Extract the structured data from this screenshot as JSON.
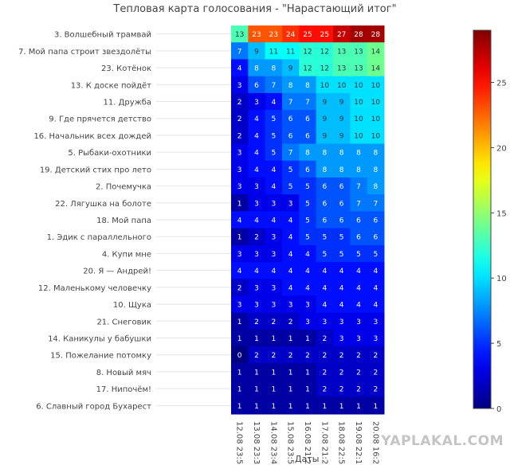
{
  "watermark": "YAPLAKAL.COM",
  "chart_data": {
    "type": "heatmap",
    "title": "Тепловая карта голосования - \"Нарастающий итог\"",
    "xlabel": "Даты",
    "ylabel": "",
    "x": [
      "12.08 23:5",
      "13.08 23:3",
      "14.08 23:4",
      "15.08 23:5",
      "16.08 21:2",
      "17.08 21:2",
      "18.08 22:5",
      "19.08 22:1",
      "20.08 16:2"
    ],
    "y": [
      "3. Волшебный трамвай",
      "7. Мой папа строит звездолёты",
      "23. Котёнок",
      "13. К доске пойдёт",
      "11. Дружба",
      "9. Где прячется детство",
      "16. Начальник всех дождей",
      "5. Рыбаки-охотники",
      "19. Детский стих про лето",
      "2. Почемучка",
      "22. Лягушка на болоте",
      "18. Мой папа",
      "1. Эдик с параллельного",
      "4. Купи мне",
      "20. Я — Андрей!",
      "12. Маленькому человечку",
      "10. Щука",
      "21. Снеговик",
      "14. Каникулы у бабушки",
      "15. Пожелание потомку",
      "8. Новый мяч",
      "17. Нипочём!",
      "6. Славный город Бухарест"
    ],
    "z": [
      [
        13,
        23,
        23,
        24,
        25,
        25,
        27,
        28,
        28
      ],
      [
        7,
        9,
        11,
        11,
        12,
        12,
        13,
        13,
        14
      ],
      [
        4,
        8,
        8,
        9,
        12,
        12,
        13,
        13,
        14
      ],
      [
        3,
        6,
        7,
        8,
        8,
        10,
        10,
        10,
        10
      ],
      [
        2,
        3,
        4,
        7,
        7,
        9,
        9,
        10,
        10
      ],
      [
        2,
        4,
        5,
        6,
        6,
        9,
        9,
        10,
        10
      ],
      [
        2,
        4,
        5,
        6,
        6,
        9,
        9,
        10,
        10
      ],
      [
        3,
        4,
        5,
        7,
        8,
        8,
        8,
        8,
        8
      ],
      [
        3,
        4,
        4,
        5,
        6,
        8,
        8,
        8,
        8
      ],
      [
        3,
        3,
        4,
        5,
        5,
        6,
        6,
        7,
        8
      ],
      [
        1,
        3,
        3,
        3,
        5,
        6,
        6,
        7,
        7
      ],
      [
        4,
        4,
        4,
        4,
        5,
        6,
        6,
        6,
        6
      ],
      [
        1,
        2,
        3,
        4,
        5,
        5,
        5,
        6,
        6
      ],
      [
        3,
        3,
        3,
        4,
        4,
        5,
        5,
        5,
        5
      ],
      [
        4,
        4,
        4,
        4,
        4,
        4,
        4,
        4,
        4
      ],
      [
        2,
        3,
        3,
        4,
        4,
        4,
        4,
        4,
        4
      ],
      [
        3,
        3,
        3,
        3,
        3,
        4,
        4,
        4,
        4
      ],
      [
        1,
        2,
        2,
        2,
        3,
        3,
        3,
        3,
        3
      ],
      [
        1,
        1,
        1,
        1,
        1,
        2,
        3,
        3,
        3
      ],
      [
        0,
        2,
        2,
        2,
        2,
        2,
        2,
        2,
        2
      ],
      [
        1,
        1,
        1,
        1,
        1,
        2,
        2,
        2,
        2
      ],
      [
        1,
        1,
        1,
        1,
        1,
        2,
        2,
        2,
        2
      ],
      [
        1,
        1,
        1,
        1,
        1,
        1,
        1,
        1,
        1
      ]
    ],
    "zlim": [
      0,
      29
    ],
    "colorscale": "jet",
    "colorbar_ticks": [
      0,
      5,
      10,
      15,
      20,
      25
    ],
    "grid": true,
    "colors": {
      "cell_text_dark": "#333333",
      "cell_text_light": "#ffffff",
      "grid": "#e4e4e4"
    }
  }
}
